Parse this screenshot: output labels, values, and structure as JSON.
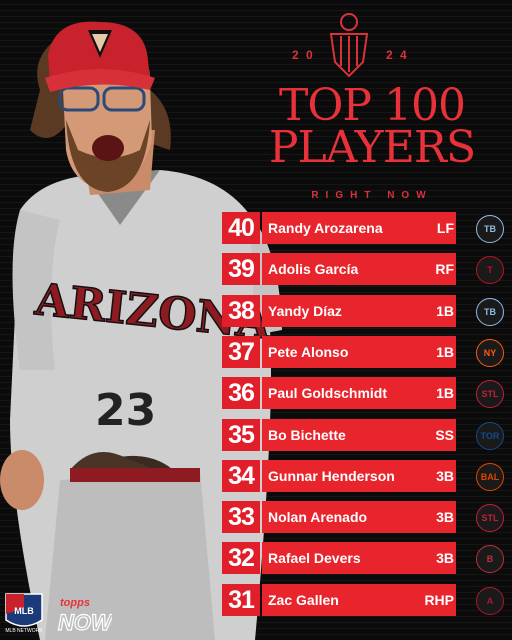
{
  "header": {
    "year_left": "2 0",
    "year_right": "2 4",
    "title_line1": "TOP 100",
    "title_line2": "PLAYERS",
    "subtitle": "RIGHT NOW"
  },
  "players": [
    {
      "rank": "40",
      "name": "Randy Arozarena",
      "pos": "LF",
      "team": "TB",
      "team_color": "#8fbce6"
    },
    {
      "rank": "39",
      "name": "Adolis García",
      "pos": "RF",
      "team": "T",
      "team_color": "#c0111f"
    },
    {
      "rank": "38",
      "name": "Yandy Díaz",
      "pos": "1B",
      "team": "TB",
      "team_color": "#8fbce6"
    },
    {
      "rank": "37",
      "name": "Pete Alonso",
      "pos": "1B",
      "team": "NY",
      "team_color": "#ff5910"
    },
    {
      "rank": "36",
      "name": "Paul Goldschmidt",
      "pos": "1B",
      "team": "STL",
      "team_color": "#c41e3a"
    },
    {
      "rank": "35",
      "name": "Bo Bichette",
      "pos": "SS",
      "team": "TOR",
      "team_color": "#134a8e"
    },
    {
      "rank": "34",
      "name": "Gunnar Henderson",
      "pos": "3B",
      "team": "BAL",
      "team_color": "#df4601"
    },
    {
      "rank": "33",
      "name": "Nolan Arenado",
      "pos": "3B",
      "team": "STL",
      "team_color": "#c41e3a"
    },
    {
      "rank": "32",
      "name": "Rafael Devers",
      "pos": "3B",
      "team": "B",
      "team_color": "#bd3039"
    },
    {
      "rank": "31",
      "name": "Zac Gallen",
      "pos": "RHP",
      "team": "A",
      "team_color": "#a71930"
    }
  ],
  "jersey": {
    "team_text": "ARIZONA",
    "number": "23"
  },
  "branding": {
    "mlb_network": "MLB NETWORK",
    "topps": "topps",
    "now": "NOW"
  }
}
